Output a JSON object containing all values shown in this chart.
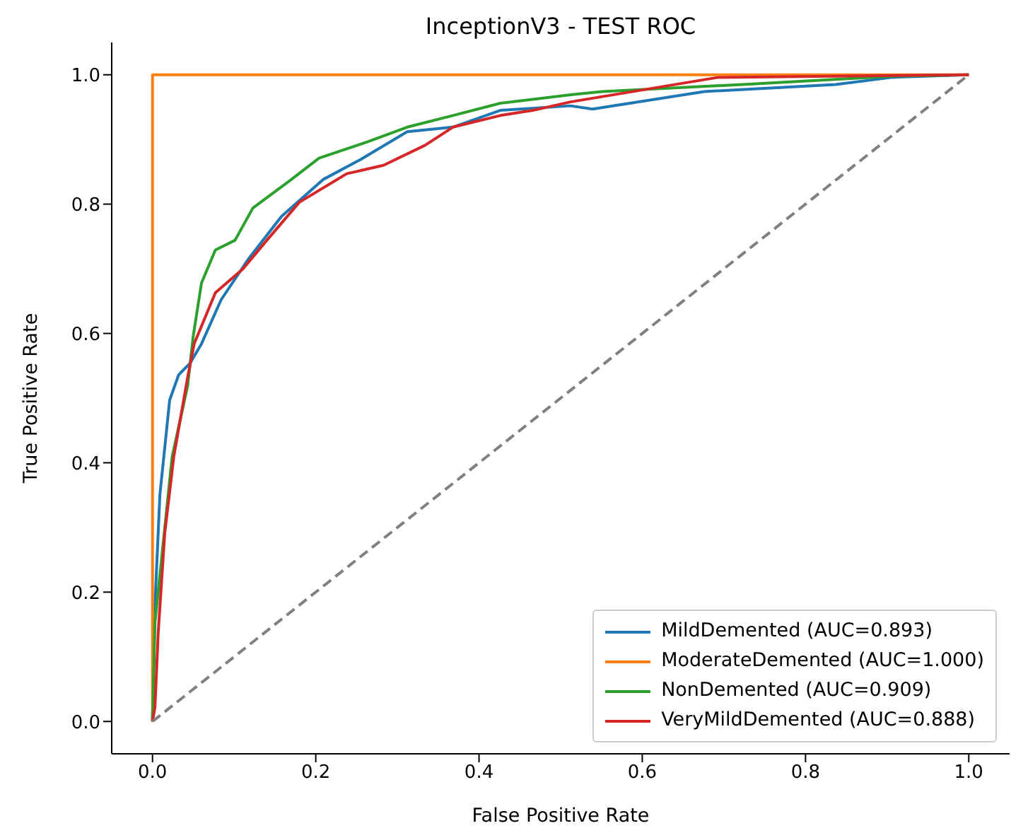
{
  "chart_data": {
    "type": "line",
    "title": "InceptionV3 - TEST ROC",
    "xlabel": "False Positive Rate",
    "ylabel": "True Positive Rate",
    "xlim": [
      -0.05,
      1.05
    ],
    "ylim": [
      -0.05,
      1.05
    ],
    "xticks": [
      {
        "value": 0,
        "label": "0.0"
      },
      {
        "value": 0.2,
        "label": "0.2"
      },
      {
        "value": 0.4,
        "label": "0.4"
      },
      {
        "value": 0.6,
        "label": "0.6"
      },
      {
        "value": 0.8,
        "label": "0.8"
      },
      {
        "value": 1,
        "label": "1.0"
      }
    ],
    "yticks": [
      {
        "value": 0,
        "label": "0.0"
      },
      {
        "value": 0.2,
        "label": "0.2"
      },
      {
        "value": 0.4,
        "label": "0.4"
      },
      {
        "value": 0.6,
        "label": "0.6"
      },
      {
        "value": 0.8,
        "label": "0.8"
      },
      {
        "value": 1,
        "label": "1.0"
      }
    ],
    "grid": false,
    "legend": "bottom right",
    "marker": "none",
    "series": [
      {
        "name": "MildDemented (AUC=0.893)",
        "color": "#1f77b4",
        "line_style": "solid",
        "x": [
          0,
          0,
          0.003,
          0.009,
          0.021,
          0.032,
          0.046,
          0.06,
          0.084,
          0.118,
          0.158,
          0.209,
          0.255,
          0.312,
          0.368,
          0.426,
          0.512,
          0.539,
          0.676,
          0.837,
          0.906,
          1
        ],
        "values": [
          0,
          0.007,
          0.18,
          0.35,
          0.497,
          0.536,
          0.554,
          0.584,
          0.652,
          0.716,
          0.781,
          0.838,
          0.869,
          0.912,
          0.919,
          0.945,
          0.952,
          0.947,
          0.974,
          0.985,
          0.996,
          1
        ]
      },
      {
        "name": "ModerateDemented (AUC=1.000)",
        "color": "#ff7f0e",
        "line_style": "solid",
        "x": [
          0,
          0,
          1
        ],
        "values": [
          0,
          1,
          1
        ]
      },
      {
        "name": "NonDemented (AUC=0.909)",
        "color": "#2ca02c",
        "line_style": "solid",
        "x": [
          0,
          0.003,
          0.024,
          0.043,
          0.05,
          0.06,
          0.077,
          0.101,
          0.123,
          0.17,
          0.204,
          0.265,
          0.312,
          0.368,
          0.426,
          0.512,
          0.551,
          0.723,
          0.911,
          1
        ],
        "values": [
          0,
          0.153,
          0.409,
          0.519,
          0.597,
          0.678,
          0.729,
          0.744,
          0.794,
          0.838,
          0.871,
          0.897,
          0.919,
          0.937,
          0.956,
          0.969,
          0.974,
          0.985,
          0.998,
          1
        ]
      },
      {
        "name": "VeryMildDemented (AUC=0.888)",
        "color": "#d62728",
        "line_style": "solid",
        "x": [
          0,
          0.003,
          0.007,
          0.015,
          0.026,
          0.043,
          0.051,
          0.077,
          0.111,
          0.14,
          0.18,
          0.238,
          0.283,
          0.334,
          0.368,
          0.426,
          0.466,
          0.512,
          0.693,
          1
        ],
        "values": [
          0,
          0.022,
          0.138,
          0.291,
          0.409,
          0.532,
          0.584,
          0.663,
          0.7,
          0.744,
          0.803,
          0.847,
          0.86,
          0.891,
          0.919,
          0.937,
          0.945,
          0.958,
          0.996,
          1
        ]
      },
      {
        "color": "#808080",
        "line_style": "dashed",
        "x": [
          0,
          1
        ],
        "values": [
          0,
          1
        ]
      }
    ]
  }
}
